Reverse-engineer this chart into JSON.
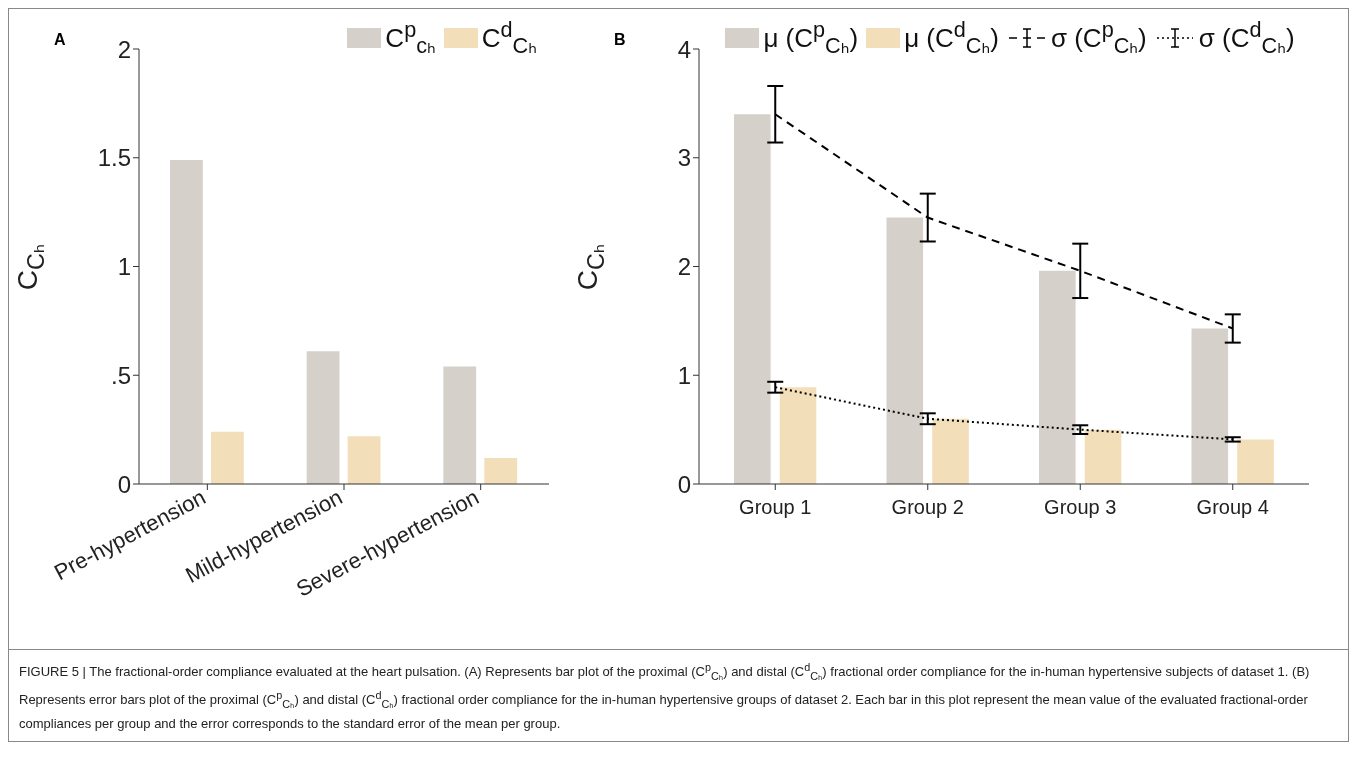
{
  "chart_data": [
    {
      "type": "bar",
      "title": "A",
      "ylabel": "C$_{Cₕ}$",
      "categories": [
        "Pre-hypertension",
        "Mild-hypertension",
        "Severe-hypertension"
      ],
      "series": [
        {
          "name": "C$^{p}$$_{cₕ}$",
          "color": "#d5d1ca",
          "values": [
            1.49,
            0.61,
            0.54
          ]
        },
        {
          "name": "C$^{d}$$_{Cₕ}$",
          "color": "#f2dfb9",
          "values": [
            0.24,
            0.22,
            0.12
          ]
        }
      ],
      "ylim": [
        0,
        2
      ],
      "yticks": [
        0,
        {
          "value": 0.5,
          "label": ".5"
        },
        1,
        1.5,
        2
      ],
      "legend": "top right",
      "annotations": [
        "FIGURE 5 | The fractional-order compliance evaluated at the heart pulsation. (A) Represents bar plot of the proximal (C$^{p}$$_{Cₕ}$) and distal (C$^{d}$$_{Cₕ}$) fractional order compliance for the in-human hypertensive subjects of dataset 1. (B) Represents error bars plot of the proximal (C$^{p}$$_{Cₕ}$) and distal (C$^{d}$$_{Cₕ}$) fractional order compliance for the in-human hypertensive groups of dataset 2. Each bar in this plot represent the mean value of the evaluated fractional-order compliances per group and the error corresponds to the standard error of the mean per group."
      ]
    },
    {
      "type": "bar",
      "title": "B",
      "ylabel": "C$_{Cₕ}$",
      "categories": [
        "Group 1",
        "Group 2",
        "Group 3",
        "Group 4"
      ],
      "series": [
        {
          "name": "μ (C$^{p}$$_{Cₕ}$)",
          "color": "#d5d1ca",
          "values": [
            3.4,
            2.45,
            1.96,
            1.43
          ]
        },
        {
          "name": "μ (C$^{d}$$_{Cₕ}$)",
          "color": "#f2dfb9",
          "values": [
            0.89,
            0.6,
            0.5,
            0.41
          ]
        },
        {
          "name": "σ (C$^{p}$$_{Cₕ}$)",
          "type": "line",
          "color": "#000000",
          "line_style": "dashed",
          "marker": "none",
          "values": [
            3.4,
            2.45,
            1.96,
            1.43
          ],
          "errors": [
            0.26,
            0.22,
            0.25,
            0.13
          ]
        },
        {
          "name": "σ (C$^{d}$$_{Cₕ}$)",
          "type": "line",
          "color": "#000000",
          "line_style": "dotted",
          "marker": "none",
          "values": [
            0.89,
            0.6,
            0.5,
            0.41
          ],
          "errors": [
            0.05,
            0.05,
            0.04,
            0.02
          ]
        }
      ],
      "ylim": [
        0,
        4
      ],
      "yticks": [
        0,
        1,
        2,
        3,
        4
      ],
      "legend": "top"
    }
  ]
}
